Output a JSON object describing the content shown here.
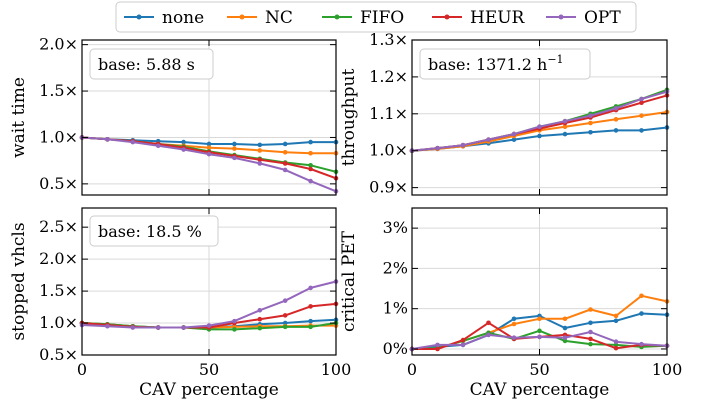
{
  "chart_data": {
    "type": "line",
    "legend": {
      "placement": "top-center",
      "entries": [
        "none",
        "NC",
        "FIFO",
        "HEUR",
        "OPT"
      ]
    },
    "series_colors": {
      "none": "#1f77b4",
      "NC": "#ff7f0e",
      "FIFO": "#2ca02c",
      "HEUR": "#d62728",
      "OPT": "#9467bd"
    },
    "x": [
      0,
      10,
      20,
      30,
      40,
      50,
      60,
      70,
      80,
      90,
      100
    ],
    "xlabel": "CAV percentage",
    "xlim": [
      0,
      100
    ],
    "xticks": [
      "0",
      "50",
      "100"
    ],
    "grid": true,
    "panels": [
      {
        "id": "wait-time",
        "ylabel": "wait time",
        "annotation": "base: 5.88 s",
        "ylim": [
          0.38,
          2.05
        ],
        "yticks": [
          {
            "value": 0.5,
            "label": "0.5×"
          },
          {
            "value": 1.0,
            "label": "1.0×"
          },
          {
            "value": 1.5,
            "label": "1.5×"
          },
          {
            "value": 2.0,
            "label": "2.0×"
          }
        ],
        "series": [
          {
            "name": "none",
            "values": [
              1.0,
              0.98,
              0.97,
              0.96,
              0.95,
              0.93,
              0.93,
              0.92,
              0.93,
              0.95,
              0.95
            ]
          },
          {
            "name": "NC",
            "values": [
              1.0,
              0.98,
              0.96,
              0.93,
              0.91,
              0.89,
              0.88,
              0.86,
              0.84,
              0.83,
              0.83
            ]
          },
          {
            "name": "FIFO",
            "values": [
              1.0,
              0.98,
              0.96,
              0.93,
              0.9,
              0.85,
              0.81,
              0.77,
              0.73,
              0.7,
              0.63
            ]
          },
          {
            "name": "HEUR",
            "values": [
              1.0,
              0.98,
              0.96,
              0.93,
              0.89,
              0.84,
              0.8,
              0.76,
              0.72,
              0.66,
              0.56
            ]
          },
          {
            "name": "OPT",
            "values": [
              1.0,
              0.98,
              0.95,
              0.91,
              0.87,
              0.82,
              0.78,
              0.72,
              0.65,
              0.53,
              0.42
            ]
          }
        ]
      },
      {
        "id": "throughput",
        "ylabel": "throughput",
        "annotation": "base: 1371.2 h",
        "annotation_sup": "−1",
        "ylim": [
          0.88,
          1.3
        ],
        "yticks": [
          {
            "value": 0.9,
            "label": "0.9×"
          },
          {
            "value": 1.0,
            "label": "1.0×"
          },
          {
            "value": 1.1,
            "label": "1.1×"
          },
          {
            "value": 1.2,
            "label": "1.2×"
          },
          {
            "value": 1.3,
            "label": "1.3×"
          }
        ],
        "series": [
          {
            "name": "none",
            "values": [
              1.0,
              1.005,
              1.012,
              1.02,
              1.03,
              1.04,
              1.045,
              1.05,
              1.055,
              1.055,
              1.063
            ]
          },
          {
            "name": "NC",
            "values": [
              1.0,
              1.005,
              1.012,
              1.025,
              1.04,
              1.055,
              1.065,
              1.075,
              1.085,
              1.095,
              1.105
            ]
          },
          {
            "name": "FIFO",
            "values": [
              1.0,
              1.007,
              1.015,
              1.03,
              1.045,
              1.065,
              1.08,
              1.1,
              1.12,
              1.14,
              1.165
            ]
          },
          {
            "name": "HEUR",
            "values": [
              1.0,
              1.007,
              1.015,
              1.03,
              1.045,
              1.06,
              1.075,
              1.09,
              1.11,
              1.13,
              1.15
            ]
          },
          {
            "name": "OPT",
            "values": [
              1.0,
              1.007,
              1.015,
              1.03,
              1.045,
              1.065,
              1.08,
              1.095,
              1.115,
              1.14,
              1.16
            ]
          }
        ]
      },
      {
        "id": "stopped-vhcls",
        "ylabel": "stopped vhcls",
        "annotation": "base: 18.5 %",
        "ylim": [
          0.5,
          2.8
        ],
        "yticks": [
          {
            "value": 0.5,
            "label": "0.5×"
          },
          {
            "value": 1.0,
            "label": "1.0×"
          },
          {
            "value": 1.5,
            "label": "1.5×"
          },
          {
            "value": 2.0,
            "label": "2.0×"
          },
          {
            "value": 2.5,
            "label": "2.5×"
          }
        ],
        "series": [
          {
            "name": "none",
            "values": [
              1.0,
              0.98,
              0.95,
              0.93,
              0.93,
              0.93,
              0.95,
              0.98,
              1.0,
              1.03,
              1.05
            ]
          },
          {
            "name": "NC",
            "values": [
              1.0,
              0.98,
              0.95,
              0.93,
              0.93,
              0.93,
              0.94,
              0.95,
              0.95,
              0.96,
              0.96
            ]
          },
          {
            "name": "FIFO",
            "values": [
              1.0,
              0.98,
              0.95,
              0.93,
              0.93,
              0.9,
              0.9,
              0.92,
              0.94,
              0.94,
              1.0
            ]
          },
          {
            "name": "HEUR",
            "values": [
              1.0,
              0.97,
              0.94,
              0.93,
              0.93,
              0.93,
              1.0,
              1.06,
              1.12,
              1.26,
              1.3
            ]
          },
          {
            "name": "OPT",
            "values": [
              0.97,
              0.95,
              0.93,
              0.93,
              0.93,
              0.96,
              1.03,
              1.2,
              1.35,
              1.55,
              1.65
            ]
          }
        ]
      },
      {
        "id": "critical-pet",
        "ylabel": "critical PET",
        "ylim": [
          -0.15,
          3.5
        ],
        "yticks": [
          {
            "value": 0,
            "label": "0%"
          },
          {
            "value": 1,
            "label": "1%"
          },
          {
            "value": 2,
            "label": "2%"
          },
          {
            "value": 3,
            "label": "3%"
          }
        ],
        "series": [
          {
            "name": "none",
            "values": [
              0.0,
              0.05,
              0.1,
              0.35,
              0.75,
              0.82,
              0.52,
              0.65,
              0.7,
              0.88,
              0.85
            ]
          },
          {
            "name": "NC",
            "values": [
              0.0,
              0.02,
              0.2,
              0.4,
              0.62,
              0.75,
              0.75,
              0.98,
              0.82,
              1.32,
              1.18
            ]
          },
          {
            "name": "FIFO",
            "values": [
              0.0,
              0.02,
              0.2,
              0.4,
              0.25,
              0.45,
              0.2,
              0.12,
              0.1,
              0.05,
              0.08
            ]
          },
          {
            "name": "HEUR",
            "values": [
              0.0,
              0.0,
              0.22,
              0.65,
              0.25,
              0.3,
              0.35,
              0.25,
              0.02,
              0.1,
              0.08
            ]
          },
          {
            "name": "OPT",
            "values": [
              0.0,
              0.1,
              0.1,
              0.35,
              0.28,
              0.3,
              0.28,
              0.42,
              0.18,
              0.12,
              0.08
            ]
          }
        ]
      }
    ]
  }
}
